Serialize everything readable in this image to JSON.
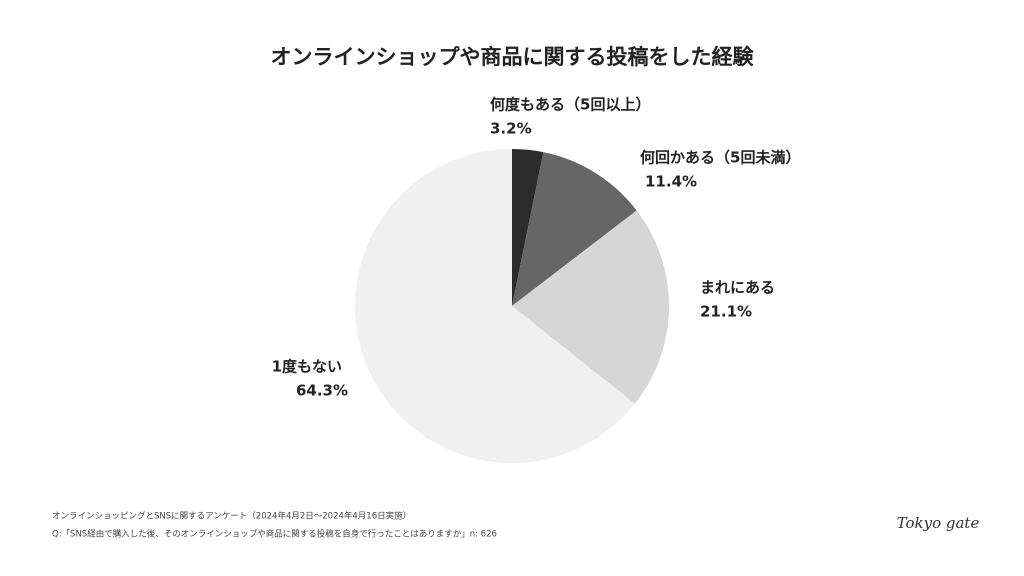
{
  "chart_data": {
    "type": "pie",
    "title": "オンラインショップや商品に関する投稿をした経験",
    "categories": [
      "何度もある（5回以上）",
      "何回かある（5回未満）",
      "まれにある",
      "1度もない"
    ],
    "values": [
      3.2,
      11.4,
      21.1,
      64.3
    ],
    "value_labels": [
      "3.2%",
      "11.4%",
      "21.1%",
      "64.3%"
    ],
    "colors": [
      "#2b2b2b",
      "#666666",
      "#d6d6d6",
      "#f0f0f0"
    ],
    "notes": [
      "オンラインショッピングとSNSに関するアンケート（2024年4月2日〜2024年4月16日実施）",
      "Q:「SNS経由で購入した後、そのオンラインショップや商品に関する投稿を自身で行ったことはありますか」n: 626"
    ],
    "brand": "Tokyo gate"
  }
}
